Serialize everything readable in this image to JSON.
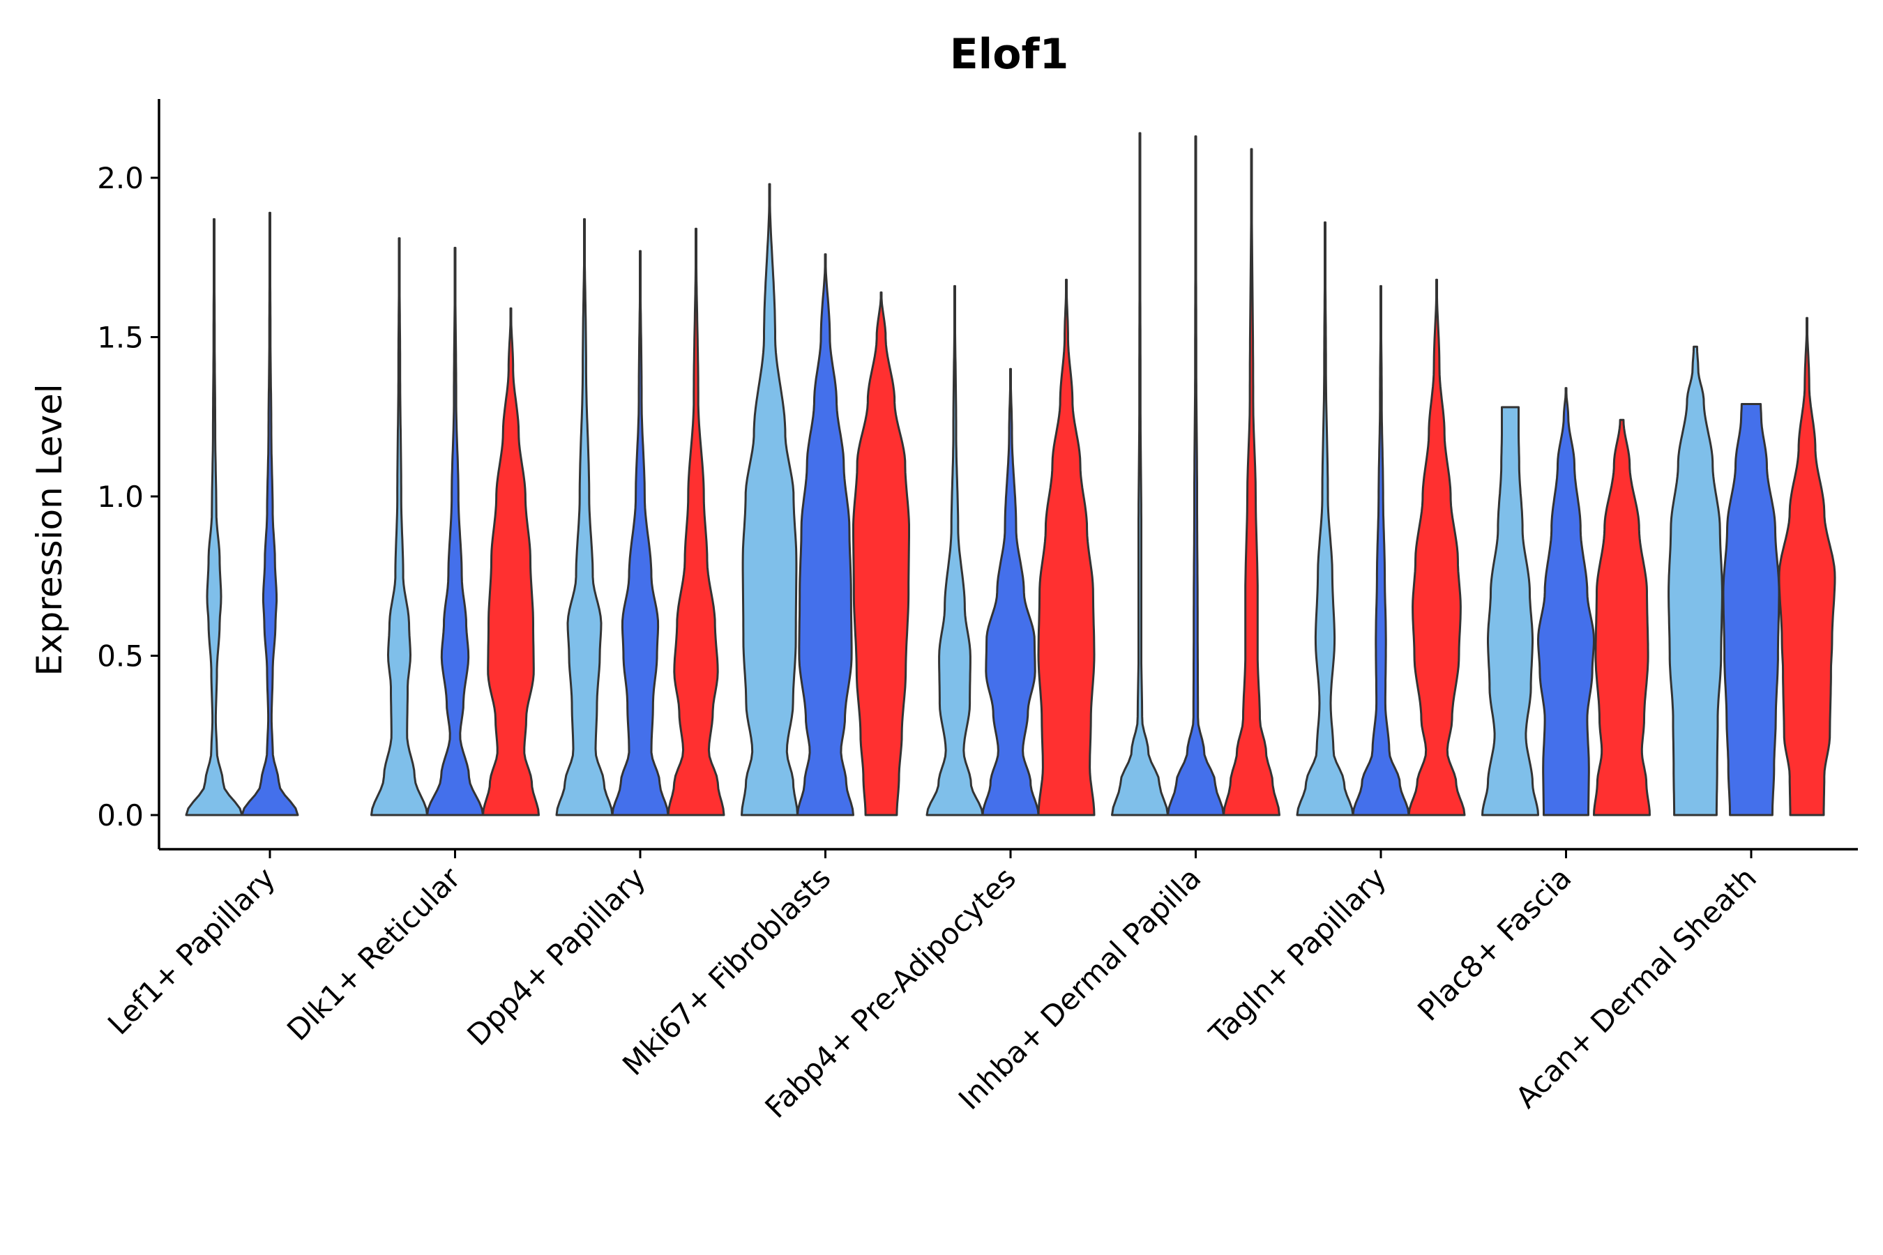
{
  "chart_data": {
    "type": "violin",
    "title": "Elof1",
    "xlabel": "",
    "ylabel": "Expression Level",
    "ylim": [
      -0.11,
      2.25
    ],
    "yticks": [
      0.0,
      0.5,
      1.0,
      1.5,
      2.0
    ],
    "ytick_labels": [
      "0.0",
      "0.5",
      "1.0",
      "1.5",
      "2.0"
    ],
    "categories": [
      "Lef1+ Papillary",
      "Dlk1+ Reticular",
      "Dpp4+ Papillary",
      "Mki67+ Fibroblasts",
      "Fabp4+ Pre-Adipocytes",
      "Inhba+ Dermal Papilla",
      "Tagln+ Papillary",
      "Plac8+ Fascia",
      "Acan+ Dermal Sheath"
    ],
    "series_colors": [
      "#7fbfea",
      "#4470eb",
      "#ff3030"
    ],
    "violins": [
      {
        "group": 0,
        "series": 0,
        "max": 1.87,
        "profile": [
          [
            0,
            1.0
          ],
          [
            0.1,
            0.32
          ],
          [
            0.2,
            0.1
          ],
          [
            0.3,
            0.06
          ],
          [
            0.45,
            0.1
          ],
          [
            0.6,
            0.2
          ],
          [
            0.68,
            0.25
          ],
          [
            0.8,
            0.2
          ],
          [
            0.95,
            0.08
          ],
          [
            1.2,
            0.04
          ],
          [
            1.5,
            0.02
          ],
          [
            1.87,
            0.0
          ]
        ]
      },
      {
        "group": 0,
        "series": 1,
        "max": 1.89,
        "profile": [
          [
            0,
            1.0
          ],
          [
            0.1,
            0.32
          ],
          [
            0.2,
            0.1
          ],
          [
            0.3,
            0.06
          ],
          [
            0.45,
            0.1
          ],
          [
            0.6,
            0.2
          ],
          [
            0.68,
            0.24
          ],
          [
            0.8,
            0.18
          ],
          [
            0.95,
            0.1
          ],
          [
            1.2,
            0.05
          ],
          [
            1.5,
            0.02
          ],
          [
            1.89,
            0.0
          ]
        ]
      },
      {
        "group": 1,
        "series": 0,
        "max": 1.81,
        "profile": [
          [
            0,
            1.0
          ],
          [
            0.12,
            0.55
          ],
          [
            0.25,
            0.28
          ],
          [
            0.4,
            0.3
          ],
          [
            0.5,
            0.4
          ],
          [
            0.6,
            0.35
          ],
          [
            0.75,
            0.14
          ],
          [
            1.0,
            0.07
          ],
          [
            1.4,
            0.03
          ],
          [
            1.81,
            0.0
          ]
        ]
      },
      {
        "group": 1,
        "series": 1,
        "max": 1.78,
        "profile": [
          [
            0,
            1.0
          ],
          [
            0.12,
            0.5
          ],
          [
            0.25,
            0.18
          ],
          [
            0.35,
            0.3
          ],
          [
            0.5,
            0.48
          ],
          [
            0.6,
            0.4
          ],
          [
            0.75,
            0.24
          ],
          [
            1.0,
            0.12
          ],
          [
            1.3,
            0.04
          ],
          [
            1.78,
            0.0
          ]
        ]
      },
      {
        "group": 1,
        "series": 2,
        "max": 1.59,
        "profile": [
          [
            0,
            1.0
          ],
          [
            0.1,
            0.75
          ],
          [
            0.2,
            0.48
          ],
          [
            0.3,
            0.55
          ],
          [
            0.45,
            0.82
          ],
          [
            0.6,
            0.8
          ],
          [
            0.8,
            0.7
          ],
          [
            1.0,
            0.52
          ],
          [
            1.2,
            0.28
          ],
          [
            1.4,
            0.08
          ],
          [
            1.59,
            0.0
          ]
        ]
      },
      {
        "group": 2,
        "series": 0,
        "max": 1.87,
        "profile": [
          [
            0,
            1.0
          ],
          [
            0.1,
            0.7
          ],
          [
            0.2,
            0.4
          ],
          [
            0.35,
            0.45
          ],
          [
            0.5,
            0.55
          ],
          [
            0.6,
            0.6
          ],
          [
            0.75,
            0.3
          ],
          [
            1.0,
            0.17
          ],
          [
            1.4,
            0.06
          ],
          [
            1.87,
            0.0
          ]
        ]
      },
      {
        "group": 2,
        "series": 1,
        "max": 1.77,
        "profile": [
          [
            0,
            1.0
          ],
          [
            0.1,
            0.7
          ],
          [
            0.2,
            0.4
          ],
          [
            0.35,
            0.46
          ],
          [
            0.5,
            0.6
          ],
          [
            0.6,
            0.64
          ],
          [
            0.75,
            0.4
          ],
          [
            1.0,
            0.16
          ],
          [
            1.3,
            0.05
          ],
          [
            1.77,
            0.0
          ]
        ]
      },
      {
        "group": 2,
        "series": 2,
        "max": 1.84,
        "profile": [
          [
            0,
            1.0
          ],
          [
            0.1,
            0.78
          ],
          [
            0.2,
            0.46
          ],
          [
            0.32,
            0.6
          ],
          [
            0.45,
            0.78
          ],
          [
            0.6,
            0.68
          ],
          [
            0.8,
            0.4
          ],
          [
            1.0,
            0.28
          ],
          [
            1.3,
            0.08
          ],
          [
            1.84,
            0.0
          ]
        ]
      },
      {
        "group": 3,
        "series": 0,
        "max": 1.98,
        "profile": [
          [
            0,
            1.0
          ],
          [
            0.1,
            0.85
          ],
          [
            0.2,
            0.62
          ],
          [
            0.35,
            0.84
          ],
          [
            0.55,
            0.94
          ],
          [
            0.8,
            0.96
          ],
          [
            1.0,
            0.86
          ],
          [
            1.2,
            0.56
          ],
          [
            1.5,
            0.2
          ],
          [
            1.98,
            0.0
          ]
        ]
      },
      {
        "group": 3,
        "series": 1,
        "max": 1.76,
        "profile": [
          [
            0,
            1.0
          ],
          [
            0.1,
            0.75
          ],
          [
            0.2,
            0.56
          ],
          [
            0.3,
            0.7
          ],
          [
            0.5,
            0.94
          ],
          [
            0.7,
            0.92
          ],
          [
            0.9,
            0.86
          ],
          [
            1.1,
            0.66
          ],
          [
            1.3,
            0.4
          ],
          [
            1.5,
            0.16
          ],
          [
            1.76,
            0.0
          ]
        ]
      },
      {
        "group": 3,
        "series": 2,
        "max": 1.64,
        "profile": [
          [
            0,
            0.56
          ],
          [
            0.12,
            0.64
          ],
          [
            0.25,
            0.74
          ],
          [
            0.45,
            0.88
          ],
          [
            0.7,
            0.98
          ],
          [
            0.9,
            1.0
          ],
          [
            1.1,
            0.86
          ],
          [
            1.3,
            0.48
          ],
          [
            1.5,
            0.16
          ],
          [
            1.64,
            0.0
          ]
        ]
      },
      {
        "group": 4,
        "series": 0,
        "max": 1.66,
        "profile": [
          [
            0,
            1.0
          ],
          [
            0.1,
            0.58
          ],
          [
            0.2,
            0.32
          ],
          [
            0.35,
            0.54
          ],
          [
            0.5,
            0.56
          ],
          [
            0.65,
            0.36
          ],
          [
            0.9,
            0.12
          ],
          [
            1.2,
            0.05
          ],
          [
            1.66,
            0.0
          ]
        ]
      },
      {
        "group": 4,
        "series": 1,
        "max": 1.4,
        "profile": [
          [
            0,
            1.0
          ],
          [
            0.1,
            0.72
          ],
          [
            0.2,
            0.44
          ],
          [
            0.32,
            0.62
          ],
          [
            0.45,
            0.88
          ],
          [
            0.55,
            0.86
          ],
          [
            0.7,
            0.48
          ],
          [
            0.9,
            0.2
          ],
          [
            1.2,
            0.05
          ],
          [
            1.4,
            0.0
          ]
        ]
      },
      {
        "group": 4,
        "series": 2,
        "max": 1.68,
        "profile": [
          [
            0,
            1.0
          ],
          [
            0.15,
            0.84
          ],
          [
            0.3,
            0.88
          ],
          [
            0.5,
            1.0
          ],
          [
            0.7,
            0.96
          ],
          [
            0.9,
            0.74
          ],
          [
            1.1,
            0.5
          ],
          [
            1.3,
            0.22
          ],
          [
            1.5,
            0.06
          ],
          [
            1.68,
            0.0
          ]
        ]
      },
      {
        "group": 5,
        "series": 0,
        "max": 2.14,
        "profile": [
          [
            0,
            1.0
          ],
          [
            0.1,
            0.7
          ],
          [
            0.2,
            0.3
          ],
          [
            0.3,
            0.08
          ],
          [
            0.5,
            0.05
          ],
          [
            0.9,
            0.05
          ],
          [
            1.3,
            0.02
          ],
          [
            2.14,
            0.0
          ]
        ]
      },
      {
        "group": 5,
        "series": 1,
        "max": 2.13,
        "profile": [
          [
            0,
            1.0
          ],
          [
            0.1,
            0.7
          ],
          [
            0.2,
            0.3
          ],
          [
            0.3,
            0.08
          ],
          [
            0.6,
            0.07
          ],
          [
            1.0,
            0.05
          ],
          [
            1.4,
            0.02
          ],
          [
            2.13,
            0.0
          ]
        ]
      },
      {
        "group": 5,
        "series": 2,
        "max": 2.09,
        "profile": [
          [
            0,
            1.0
          ],
          [
            0.1,
            0.76
          ],
          [
            0.2,
            0.52
          ],
          [
            0.3,
            0.3
          ],
          [
            0.5,
            0.22
          ],
          [
            0.7,
            0.22
          ],
          [
            1.0,
            0.15
          ],
          [
            1.3,
            0.06
          ],
          [
            2.09,
            0.0
          ]
        ]
      },
      {
        "group": 6,
        "series": 0,
        "max": 1.86,
        "profile": [
          [
            0,
            1.0
          ],
          [
            0.1,
            0.68
          ],
          [
            0.2,
            0.3
          ],
          [
            0.35,
            0.2
          ],
          [
            0.55,
            0.34
          ],
          [
            0.75,
            0.26
          ],
          [
            1.0,
            0.1
          ],
          [
            1.4,
            0.03
          ],
          [
            1.86,
            0.0
          ]
        ]
      },
      {
        "group": 6,
        "series": 1,
        "max": 1.66,
        "profile": [
          [
            0,
            1.0
          ],
          [
            0.1,
            0.68
          ],
          [
            0.2,
            0.3
          ],
          [
            0.35,
            0.16
          ],
          [
            0.55,
            0.18
          ],
          [
            0.75,
            0.14
          ],
          [
            1.0,
            0.08
          ],
          [
            1.3,
            0.03
          ],
          [
            1.66,
            0.0
          ]
        ]
      },
      {
        "group": 6,
        "series": 2,
        "max": 1.68,
        "profile": [
          [
            0,
            1.0
          ],
          [
            0.1,
            0.7
          ],
          [
            0.2,
            0.38
          ],
          [
            0.3,
            0.55
          ],
          [
            0.5,
            0.8
          ],
          [
            0.65,
            0.86
          ],
          [
            0.8,
            0.76
          ],
          [
            1.0,
            0.5
          ],
          [
            1.2,
            0.28
          ],
          [
            1.4,
            0.1
          ],
          [
            1.68,
            0.0
          ]
        ]
      },
      {
        "group": 7,
        "series": 0,
        "max": 1.28,
        "profile": [
          [
            0,
            1.0
          ],
          [
            0.1,
            0.8
          ],
          [
            0.25,
            0.56
          ],
          [
            0.4,
            0.74
          ],
          [
            0.55,
            0.8
          ],
          [
            0.7,
            0.7
          ],
          [
            0.9,
            0.44
          ],
          [
            1.1,
            0.32
          ],
          [
            1.2,
            0.3
          ],
          [
            1.28,
            0.3
          ]
        ]
      },
      {
        "group": 7,
        "series": 1,
        "max": 1.34,
        "profile": [
          [
            0,
            0.8
          ],
          [
            0.15,
            0.82
          ],
          [
            0.3,
            0.76
          ],
          [
            0.45,
            0.94
          ],
          [
            0.55,
            1.0
          ],
          [
            0.7,
            0.76
          ],
          [
            0.9,
            0.52
          ],
          [
            1.1,
            0.3
          ],
          [
            1.25,
            0.08
          ],
          [
            1.34,
            0.0
          ]
        ]
      },
      {
        "group": 7,
        "series": 2,
        "max": 1.24,
        "profile": [
          [
            0,
            1.0
          ],
          [
            0.1,
            0.88
          ],
          [
            0.2,
            0.72
          ],
          [
            0.3,
            0.8
          ],
          [
            0.5,
            0.94
          ],
          [
            0.7,
            0.9
          ],
          [
            0.9,
            0.62
          ],
          [
            1.1,
            0.28
          ],
          [
            1.24,
            0.06
          ]
        ]
      },
      {
        "group": 8,
        "series": 0,
        "max": 1.47,
        "profile": [
          [
            0,
            0.76
          ],
          [
            0.15,
            0.78
          ],
          [
            0.3,
            0.8
          ],
          [
            0.5,
            0.92
          ],
          [
            0.7,
            0.96
          ],
          [
            0.9,
            0.88
          ],
          [
            1.1,
            0.62
          ],
          [
            1.3,
            0.3
          ],
          [
            1.4,
            0.1
          ],
          [
            1.47,
            0.06
          ]
        ]
      },
      {
        "group": 8,
        "series": 1,
        "max": 1.29,
        "profile": [
          [
            0,
            0.76
          ],
          [
            0.15,
            0.82
          ],
          [
            0.3,
            0.88
          ],
          [
            0.5,
            0.96
          ],
          [
            0.7,
            1.0
          ],
          [
            0.9,
            0.86
          ],
          [
            1.1,
            0.56
          ],
          [
            1.25,
            0.36
          ],
          [
            1.29,
            0.34
          ]
        ]
      },
      {
        "group": 8,
        "series": 2,
        "max": 1.56,
        "profile": [
          [
            0,
            0.6
          ],
          [
            0.12,
            0.62
          ],
          [
            0.25,
            0.82
          ],
          [
            0.45,
            0.86
          ],
          [
            0.55,
            0.9
          ],
          [
            0.75,
            1.0
          ],
          [
            0.95,
            0.62
          ],
          [
            1.15,
            0.3
          ],
          [
            1.35,
            0.08
          ],
          [
            1.56,
            0.0
          ]
        ]
      }
    ]
  }
}
